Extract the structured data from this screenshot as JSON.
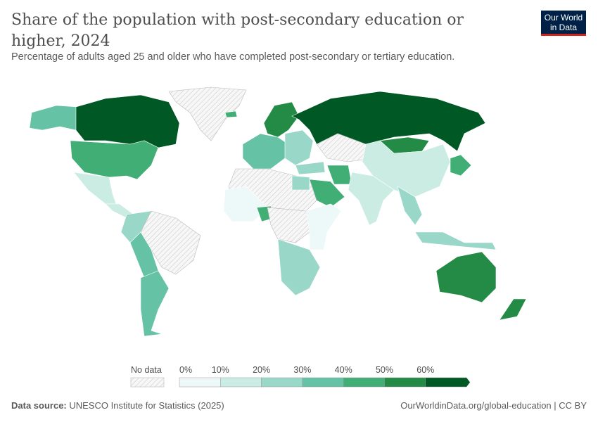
{
  "title": "Share of the population with post-secondary education or higher, 2024",
  "subtitle": "Percentage of adults aged 25 and older who have completed post-secondary or tertiary education.",
  "logo": {
    "line1": "Our World",
    "line2": "in Data"
  },
  "legend": {
    "no_data_label": "No data",
    "ticks": [
      "0%",
      "10%",
      "20%",
      "30%",
      "40%",
      "50%",
      "60%"
    ],
    "bins": [
      {
        "range": "0-10%",
        "color": "#edf8f9"
      },
      {
        "range": "10-20%",
        "color": "#cbece3"
      },
      {
        "range": "20-30%",
        "color": "#99d8c9"
      },
      {
        "range": "30-40%",
        "color": "#66c2a4"
      },
      {
        "range": "40-50%",
        "color": "#41ae76"
      },
      {
        "range": "50-60%",
        "color": "#238b45"
      },
      {
        "range": "60%+",
        "color": "#005824"
      }
    ]
  },
  "footer": {
    "source_label": "Data source:",
    "source_text": "UNESCO Institute for Statistics (2025)",
    "url": "OurWorldinData.org/global-education | CC BY"
  }
}
